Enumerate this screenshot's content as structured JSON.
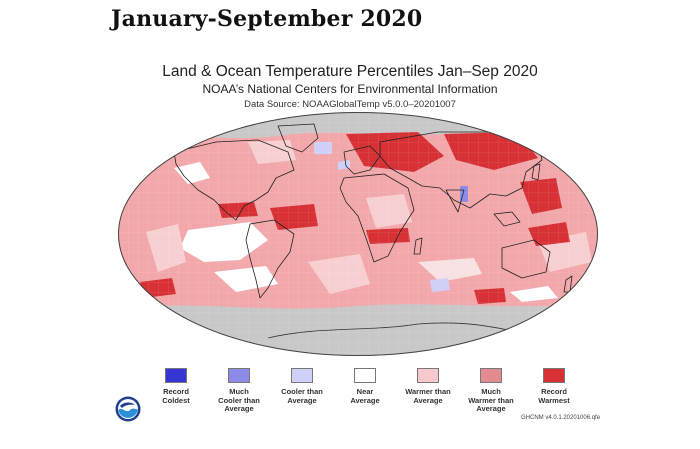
{
  "headline": "January-September 2020",
  "map": {
    "title": "Land & Ocean Temperature Percentiles Jan–Sep 2020",
    "subtitle": "NOAA’s National Centers for Environmental Information",
    "source": "Data Source: NOAAGlobalTemp v5.0.0–20201007",
    "projection": "Robinson",
    "land_color": "#e99f9f",
    "missing_color": "#c8c8c8"
  },
  "legend": {
    "items": [
      {
        "label": "Record\nColdest",
        "color": "#3535d2"
      },
      {
        "label": "Much\nCooler than\nAverage",
        "color": "#8c8ce8"
      },
      {
        "label": "Cooler than\nAverage",
        "color": "#cfcff8"
      },
      {
        "label": "Near\nAverage",
        "color": "#ffffff"
      },
      {
        "label": "Warmer than\nAverage",
        "color": "#f7c9cb"
      },
      {
        "label": "Much\nWarmer than\nAverage",
        "color": "#e48b8f"
      },
      {
        "label": "Record\nWarmest",
        "color": "#d73135"
      }
    ]
  },
  "footer": {
    "logo": "noaa-logo",
    "version": "GHCNM v4.0.1.20201006.qfe"
  }
}
